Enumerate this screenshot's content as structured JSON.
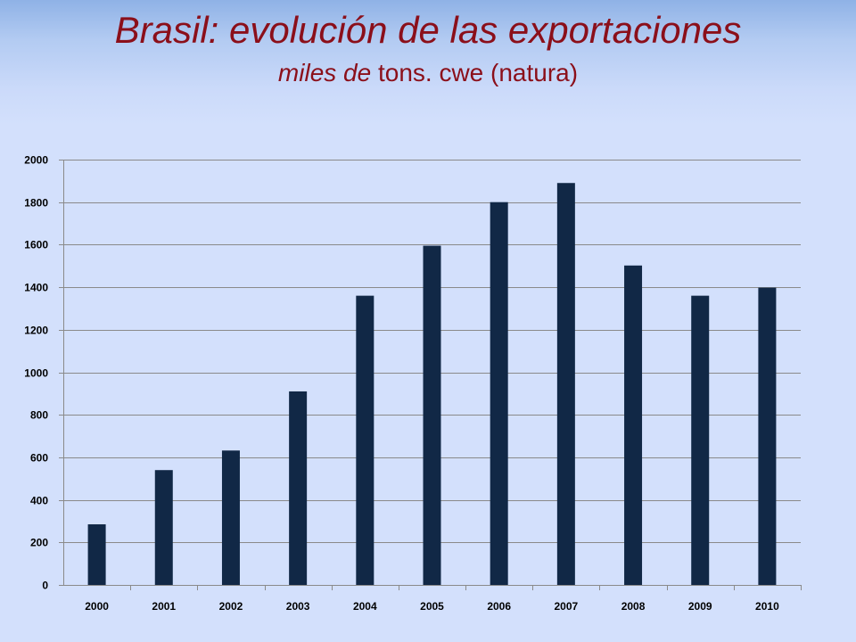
{
  "slide": {
    "title": "Brasil: evolución de las exportaciones",
    "subtitle_italic": "miles de",
    "subtitle_rest": " tons. cwe (natura)"
  },
  "colors": {
    "bar": "#112846",
    "title": "#8b0f1a",
    "grid": "#8a8a8a"
  },
  "chart_data": {
    "type": "bar",
    "title": "",
    "xlabel": "",
    "ylabel": "",
    "categories": [
      "2000",
      "2001",
      "2002",
      "2003",
      "2004",
      "2005",
      "2006",
      "2007",
      "2008",
      "2009",
      "2010"
    ],
    "values": [
      285,
      540,
      632,
      910,
      1360,
      1595,
      1800,
      1890,
      1502,
      1360,
      1398
    ],
    "ylim": [
      0,
      2000
    ],
    "yticks": [
      0,
      200,
      400,
      600,
      800,
      1000,
      1200,
      1400,
      1600,
      1800,
      2000
    ],
    "grid": true,
    "legend": "none"
  }
}
